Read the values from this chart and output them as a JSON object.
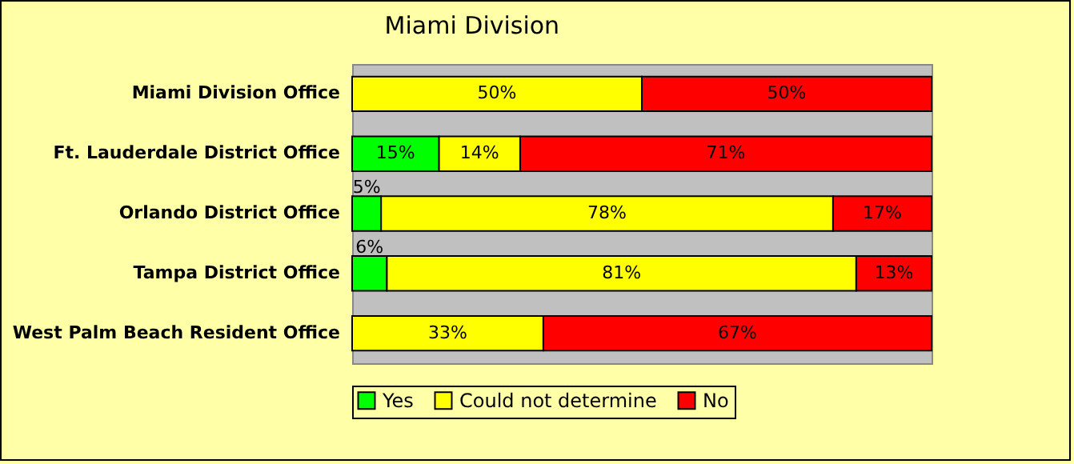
{
  "chart_data": {
    "type": "bar",
    "orientation": "horizontal",
    "stacked": true,
    "title": "Miami Division",
    "categories": [
      "Miami Division Office",
      "Ft. Lauderdale District Office",
      "Orlando District Office",
      "Tampa District Office",
      "West Palm Beach Resident Office"
    ],
    "series": [
      {
        "name": "Yes",
        "color": "#00ff00",
        "values": [
          0,
          15,
          5,
          6,
          0
        ],
        "value_labels": [
          null,
          "15%",
          "5%",
          "6%",
          null
        ]
      },
      {
        "name": "Could not determine",
        "color": "#ffff00",
        "values": [
          50,
          14,
          78,
          81,
          33
        ],
        "value_labels": [
          "50%",
          "14%",
          "78%",
          "81%",
          "33%"
        ]
      },
      {
        "name": "No",
        "color": "#ff0000",
        "values": [
          50,
          71,
          17,
          13,
          67
        ],
        "value_labels": [
          "50%",
          "71%",
          "17%",
          "13%",
          "67%"
        ]
      }
    ],
    "xlim": [
      0,
      100
    ],
    "tick_labels": "y",
    "legend": "bottom"
  }
}
